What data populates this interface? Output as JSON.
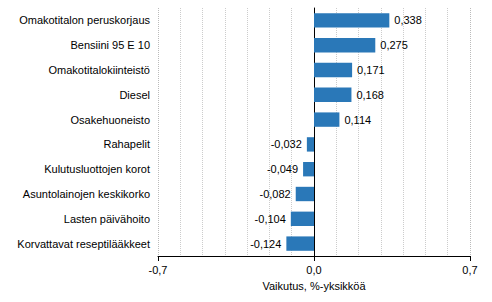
{
  "chart_data": {
    "type": "bar",
    "orientation": "horizontal",
    "categories": [
      "Omakotitalon peruskorjaus",
      "Bensiini 95 E 10",
      "Omakotitalokiinteistö",
      "Diesel",
      "Osakehuoneisto",
      "Rahapelit",
      "Kulutusluottojen korot",
      "Asuntolainojen keskikorko",
      "Lasten päivähoito",
      "Korvattavat reseptilääkkeet"
    ],
    "values": [
      0.338,
      0.275,
      0.171,
      0.168,
      0.114,
      -0.032,
      -0.049,
      -0.082,
      -0.104,
      -0.124
    ],
    "value_labels": [
      "0,338",
      "0,275",
      "0,171",
      "0,168",
      "0,114",
      "-0,032",
      "-0,049",
      "-0,082",
      "-0,104",
      "-0,124"
    ],
    "color": "#2a78b8",
    "xlabel": "Vaikutus, %-yksikköä",
    "xlim": [
      -0.7,
      0.7
    ],
    "xticks": [
      {
        "value": -0.7,
        "label": "-0,7"
      },
      {
        "value": 0,
        "label": "0,0"
      },
      {
        "value": 0.7,
        "label": "0,7"
      }
    ],
    "grid": true,
    "data_labels": true
  }
}
